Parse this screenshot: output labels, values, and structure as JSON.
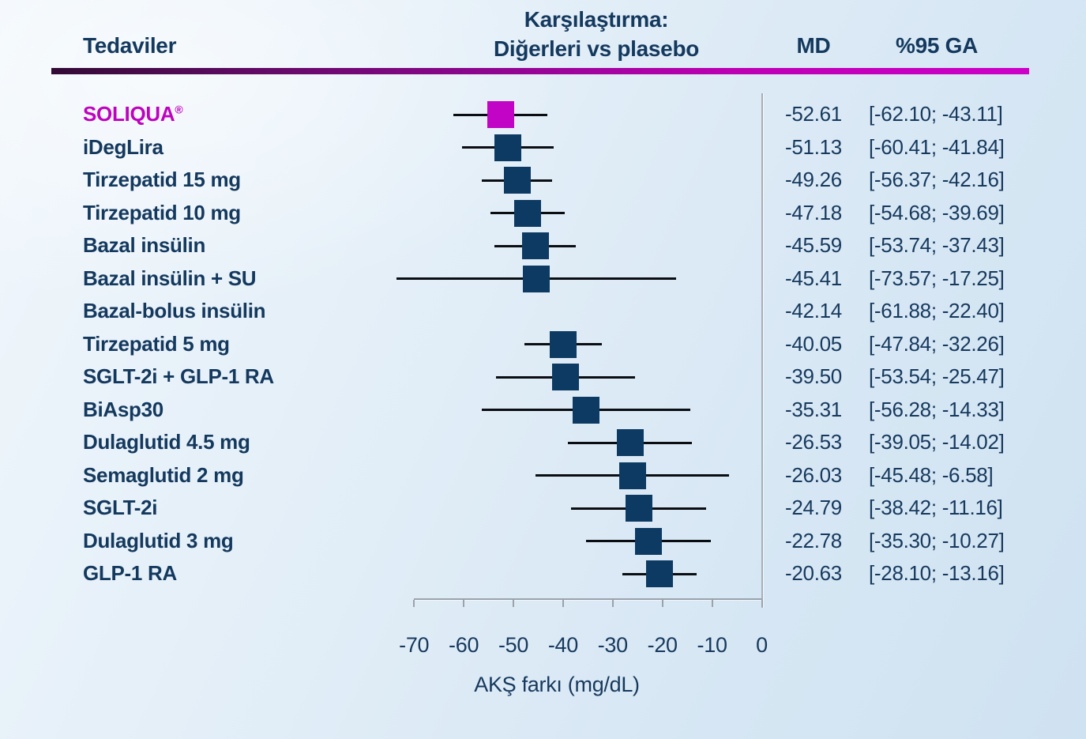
{
  "header": {
    "treatments": "Tedaviler",
    "comparison_line1": "Karşılaştırma:",
    "comparison_line2": "Diğerleri vs plasebo",
    "md": "MD",
    "ci": "%95 GA"
  },
  "colors": {
    "navy": "#0d3a63",
    "navy_text": "#14395e",
    "magenta": "#c204c6",
    "magenta_text": "#bf02bf",
    "rule_gradient_start": "#330a35",
    "rule_gradient_end": "#cd00c8",
    "axis_gray": "#9aa2ab",
    "whisker_black": "#0a0d12",
    "background_light": "#f1f7fc",
    "background_dark": "#cfe2f1"
  },
  "chart_data": {
    "type": "forest",
    "title": "",
    "xlabel": "AKŞ farkı (mg/dL)",
    "x_ticks": [
      -70,
      -60,
      -50,
      -40,
      -30,
      -20,
      -10,
      0
    ],
    "xlim": [
      -75,
      0
    ],
    "grid": false,
    "zero_reference_line": true,
    "rows": [
      {
        "label": "SOLIQUA",
        "suffix": "®",
        "md": -52.61,
        "ci": [
          -62.1,
          -43.11
        ],
        "md_text": "-52.61",
        "ci_text": "[-62.10; -43.11]",
        "highlight": true,
        "marker": true
      },
      {
        "label": "iDegLira",
        "md": -51.13,
        "ci": [
          -60.41,
          -41.84
        ],
        "md_text": "-51.13",
        "ci_text": "[-60.41; -41.84]",
        "highlight": false,
        "marker": true
      },
      {
        "label": "Tirzepatid 15 mg",
        "md": -49.26,
        "ci": [
          -56.37,
          -42.16
        ],
        "md_text": "-49.26",
        "ci_text": "[-56.37; -42.16]",
        "highlight": false,
        "marker": true
      },
      {
        "label": "Tirzepatid 10 mg",
        "md": -47.18,
        "ci": [
          -54.68,
          -39.69
        ],
        "md_text": "-47.18",
        "ci_text": "[-54.68; -39.69]",
        "highlight": false,
        "marker": true
      },
      {
        "label": "Bazal insülin",
        "md": -45.59,
        "ci": [
          -53.74,
          -37.43
        ],
        "md_text": "-45.59",
        "ci_text": "[-53.74; -37.43]",
        "highlight": false,
        "marker": true
      },
      {
        "label": "Bazal insülin + SU",
        "md": -45.41,
        "ci": [
          -73.57,
          -17.25
        ],
        "md_text": "-45.41",
        "ci_text": "[-73.57; -17.25]",
        "highlight": false,
        "marker": true
      },
      {
        "label": "Bazal-bolus insülin",
        "md": -42.14,
        "ci": [
          -61.88,
          -22.4
        ],
        "md_text": "-42.14",
        "ci_text": "[-61.88; -22.40]",
        "highlight": false,
        "marker": false
      },
      {
        "label": "Tirzepatid 5 mg",
        "md": -40.05,
        "ci": [
          -47.84,
          -32.26
        ],
        "md_text": "-40.05",
        "ci_text": "[-47.84; -32.26]",
        "highlight": false,
        "marker": true
      },
      {
        "label": "SGLT-2i + GLP-1 RA",
        "md": -39.5,
        "ci": [
          -53.54,
          -25.47
        ],
        "md_text": "-39.50",
        "ci_text": "[-53.54; -25.47]",
        "highlight": false,
        "marker": true
      },
      {
        "label": "BiAsp30",
        "md": -35.31,
        "ci": [
          -56.28,
          -14.33
        ],
        "md_text": "-35.31",
        "ci_text": "[-56.28; -14.33]",
        "highlight": false,
        "marker": true
      },
      {
        "label": "Dulaglutid 4.5 mg",
        "md": -26.53,
        "ci": [
          -39.05,
          -14.02
        ],
        "md_text": "-26.53",
        "ci_text": "[-39.05; -14.02]",
        "highlight": false,
        "marker": true
      },
      {
        "label": "Semaglutid 2 mg",
        "md": -26.03,
        "ci": [
          -45.48,
          -6.58
        ],
        "md_text": "-26.03",
        "ci_text": "[-45.48; -6.58]",
        "highlight": false,
        "marker": true
      },
      {
        "label": "SGLT-2i",
        "md": -24.79,
        "ci": [
          -38.42,
          -11.16
        ],
        "md_text": "-24.79",
        "ci_text": "[-38.42; -11.16]",
        "highlight": false,
        "marker": true
      },
      {
        "label": "Dulaglutid 3 mg",
        "md": -22.78,
        "ci": [
          -35.3,
          -10.27
        ],
        "md_text": "-22.78",
        "ci_text": "[-35.30; -10.27]",
        "highlight": false,
        "marker": true
      },
      {
        "label": "GLP-1 RA",
        "md": -20.63,
        "ci": [
          -28.1,
          -13.16
        ],
        "md_text": "-20.63",
        "ci_text": "[-28.10; -13.16]",
        "highlight": false,
        "marker": true
      }
    ]
  }
}
